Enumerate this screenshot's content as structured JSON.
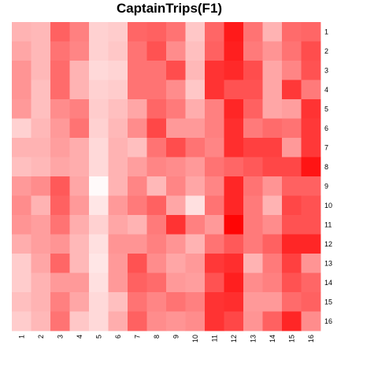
{
  "chart_data": {
    "type": "heatmap",
    "title": "CaptainTrips(F1)",
    "xlabel": "",
    "ylabel": "",
    "x_categories": [
      "1",
      "2",
      "3",
      "4",
      "5",
      "6",
      "7",
      "8",
      "9",
      "10",
      "11",
      "12",
      "13",
      "14",
      "15",
      "16"
    ],
    "y_categories": [
      "1",
      "2",
      "3",
      "4",
      "5",
      "6",
      "7",
      "8",
      "9",
      "10",
      "11",
      "12",
      "13",
      "14",
      "15",
      "16"
    ],
    "color_scale": {
      "low": "#ffffff",
      "high": "#ff0000"
    },
    "value_range": [
      0,
      1
    ],
    "grid": false,
    "legend": "none",
    "values": [
      [
        0.3,
        0.28,
        0.62,
        0.5,
        0.18,
        0.2,
        0.6,
        0.62,
        0.55,
        0.22,
        0.6,
        0.9,
        0.55,
        0.3,
        0.58,
        0.6
      ],
      [
        0.35,
        0.28,
        0.55,
        0.48,
        0.18,
        0.22,
        0.55,
        0.68,
        0.45,
        0.25,
        0.62,
        0.88,
        0.52,
        0.42,
        0.55,
        0.7
      ],
      [
        0.42,
        0.28,
        0.58,
        0.3,
        0.15,
        0.17,
        0.55,
        0.55,
        0.7,
        0.28,
        0.8,
        0.84,
        0.7,
        0.35,
        0.48,
        0.68
      ],
      [
        0.42,
        0.25,
        0.58,
        0.3,
        0.18,
        0.2,
        0.55,
        0.55,
        0.45,
        0.22,
        0.8,
        0.68,
        0.68,
        0.35,
        0.78,
        0.52
      ],
      [
        0.4,
        0.25,
        0.45,
        0.5,
        0.2,
        0.25,
        0.35,
        0.6,
        0.52,
        0.32,
        0.5,
        0.85,
        0.62,
        0.35,
        0.38,
        0.8
      ],
      [
        0.18,
        0.28,
        0.4,
        0.55,
        0.18,
        0.28,
        0.45,
        0.72,
        0.4,
        0.4,
        0.5,
        0.82,
        0.52,
        0.58,
        0.55,
        0.78
      ],
      [
        0.3,
        0.3,
        0.38,
        0.32,
        0.15,
        0.3,
        0.25,
        0.55,
        0.7,
        0.55,
        0.48,
        0.82,
        0.75,
        0.75,
        0.4,
        0.78
      ],
      [
        0.25,
        0.28,
        0.35,
        0.32,
        0.15,
        0.3,
        0.38,
        0.48,
        0.45,
        0.4,
        0.55,
        0.6,
        0.65,
        0.72,
        0.72,
        0.92
      ],
      [
        0.4,
        0.45,
        0.65,
        0.35,
        0.02,
        0.3,
        0.48,
        0.28,
        0.48,
        0.35,
        0.48,
        0.85,
        0.55,
        0.42,
        0.62,
        0.62
      ],
      [
        0.45,
        0.3,
        0.62,
        0.4,
        0.1,
        0.4,
        0.52,
        0.62,
        0.35,
        0.12,
        0.55,
        0.85,
        0.52,
        0.3,
        0.72,
        0.68
      ],
      [
        0.42,
        0.38,
        0.55,
        0.32,
        0.18,
        0.35,
        0.3,
        0.52,
        0.8,
        0.5,
        0.4,
        0.98,
        0.52,
        0.45,
        0.68,
        0.68
      ],
      [
        0.32,
        0.38,
        0.42,
        0.28,
        0.12,
        0.42,
        0.42,
        0.5,
        0.42,
        0.3,
        0.55,
        0.65,
        0.52,
        0.62,
        0.85,
        0.85
      ],
      [
        0.2,
        0.35,
        0.6,
        0.28,
        0.1,
        0.4,
        0.68,
        0.45,
        0.35,
        0.4,
        0.78,
        0.82,
        0.3,
        0.52,
        0.75,
        0.42
      ],
      [
        0.2,
        0.3,
        0.4,
        0.4,
        0.12,
        0.4,
        0.62,
        0.58,
        0.4,
        0.38,
        0.68,
        0.88,
        0.45,
        0.5,
        0.68,
        0.6
      ],
      [
        0.25,
        0.3,
        0.5,
        0.35,
        0.15,
        0.25,
        0.55,
        0.48,
        0.55,
        0.5,
        0.8,
        0.82,
        0.4,
        0.4,
        0.58,
        0.62
      ],
      [
        0.2,
        0.28,
        0.55,
        0.22,
        0.15,
        0.32,
        0.62,
        0.45,
        0.42,
        0.45,
        0.8,
        0.72,
        0.42,
        0.62,
        0.85,
        0.45
      ]
    ]
  }
}
